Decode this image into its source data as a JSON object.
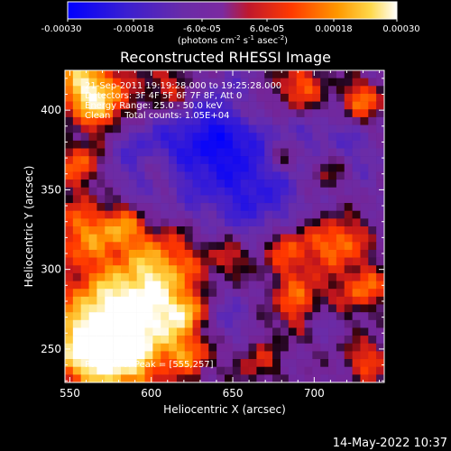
{
  "colorbar": {
    "tick_labels": [
      "-0.00030",
      "-0.00018",
      "-6.0e-05",
      "6.0e-05",
      "0.00018",
      "0.00030"
    ],
    "unit_prefix": "(photons cm",
    "unit_exp1": "-2",
    "unit_mid": " s",
    "unit_exp2": "-1",
    "unit_mid2": " asec",
    "unit_exp3": "-2",
    "unit_suffix": ")",
    "vmin": -0.0003,
    "vmax": 0.0003
  },
  "chart_data": {
    "type": "heatmap",
    "title": "Reconstructed RHESSI Image",
    "xlabel": "Heliocentric X (arcsec)",
    "ylabel": "Heliocentric Y (arcsec)",
    "xlim": [
      547,
      743
    ],
    "ylim": [
      229,
      425
    ],
    "x_ticks": [
      550,
      600,
      650,
      700
    ],
    "y_ticks": [
      250,
      300,
      350,
      400
    ],
    "x_tick_labels": [
      "550",
      "600",
      "650",
      "700"
    ],
    "y_tick_labels": [
      "250",
      "300",
      "350",
      "400"
    ],
    "colormap": "blue-purple-red-yellow-white",
    "peak_position": [
      555,
      257
    ],
    "annotations": [
      "21-Sep-2011 19:19:28.000 to 19:25:28.000",
      "Detectors: 3F 4F 5F 6F 7F 8F, Att 0",
      "Energy Range: 25.0 - 50.0 keV",
      "Clean     Total counts: 1.05E+04"
    ],
    "peak_label": "Position of Peak = [555,257]"
  },
  "footer": {
    "timestamp": "14-May-2022 10:37"
  }
}
